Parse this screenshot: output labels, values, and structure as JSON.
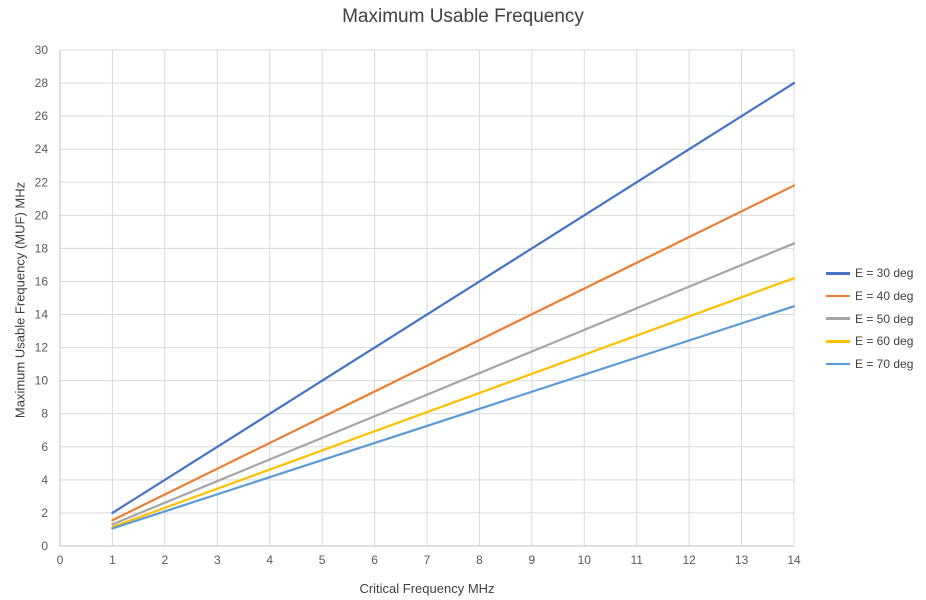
{
  "chart_data": {
    "type": "line",
    "title": "Maximum Usable Frequency",
    "xlabel": "Critical Frequency  MHz",
    "ylabel": "Maximum Usable Frequency  (MUF)  MHz",
    "xlim": [
      0,
      14
    ],
    "ylim": [
      0,
      30
    ],
    "xticks": [
      "0",
      "1",
      "2",
      "3",
      "4",
      "5",
      "6",
      "7",
      "8",
      "9",
      "10",
      "11",
      "12",
      "13",
      "14"
    ],
    "yticks": [
      "0",
      "2",
      "4",
      "6",
      "8",
      "10",
      "12",
      "14",
      "16",
      "18",
      "20",
      "22",
      "24",
      "26",
      "28",
      "30"
    ],
    "grid": true,
    "legend_position": "right",
    "x": [
      1,
      14
    ],
    "series": [
      {
        "name": "E = 30 deg",
        "color": "#4472C4",
        "values": [
          2.0,
          28.0
        ]
      },
      {
        "name": "E = 40 deg",
        "color": "#ED7D31",
        "values": [
          1.56,
          21.8
        ]
      },
      {
        "name": "E = 50 deg",
        "color": "#A5A5A5",
        "values": [
          1.31,
          18.3
        ]
      },
      {
        "name": "E = 60 deg",
        "color": "#FFC000",
        "values": [
          1.15,
          16.2
        ]
      },
      {
        "name": "E = 70 deg",
        "color": "#5B9BD5",
        "values": [
          1.06,
          14.5
        ]
      }
    ]
  }
}
